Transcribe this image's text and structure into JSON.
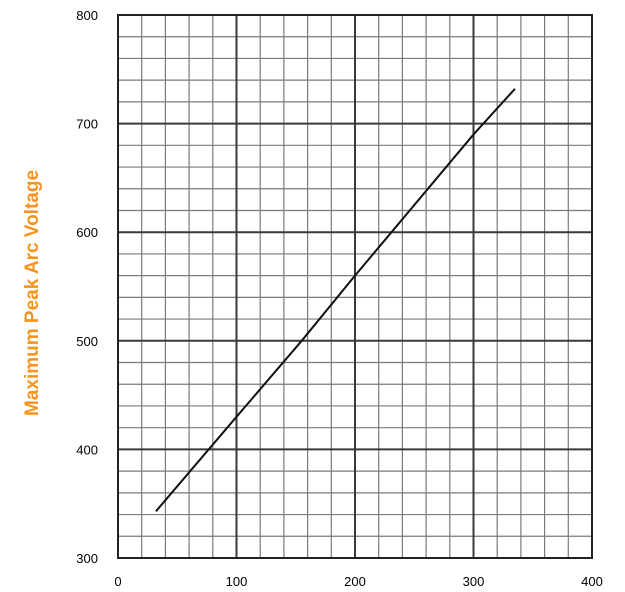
{
  "chart_data": {
    "type": "line",
    "title": "",
    "xlabel": "",
    "ylabel": "Maximum Peak Arc Voltage",
    "xlim": [
      0,
      400
    ],
    "ylim": [
      300,
      800
    ],
    "x_ticks": [
      0,
      100,
      200,
      300,
      400
    ],
    "y_ticks": [
      300,
      400,
      500,
      600,
      700,
      800
    ],
    "x_tick_labels": [
      "0",
      "100",
      "200",
      "300",
      "400"
    ],
    "y_tick_labels": [
      "300",
      "400",
      "500",
      "600",
      "700",
      "800"
    ],
    "grid": true,
    "series": [
      {
        "x": [
          32,
          100,
          155,
          200,
          300,
          335
        ],
        "y": [
          343,
          430,
          500,
          560,
          690,
          732
        ]
      }
    ],
    "colors": {
      "line": "#111111",
      "major_grid": "#3a3a3a",
      "minor_grid": "#7a7a7a",
      "ylabel": "#f7941d"
    }
  }
}
